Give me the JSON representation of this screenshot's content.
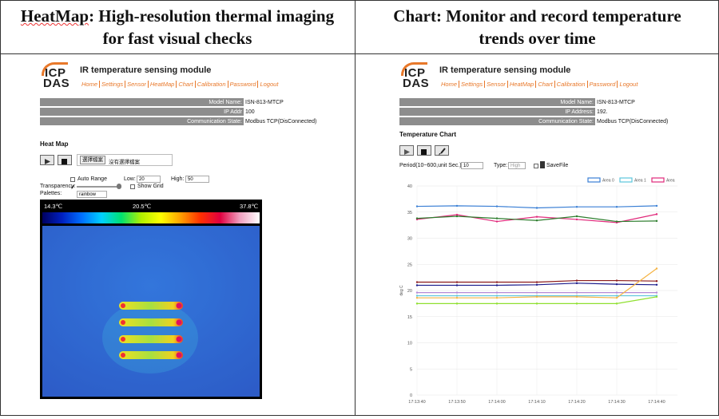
{
  "header": {
    "left_title_link": "HeatMap",
    "left_title": ": High-resolution thermal imaging for fast visual checks",
    "right_title": "Chart: Monitor and record temperature trends over time"
  },
  "left": {
    "logo_top": "ICP",
    "logo_bottom": "DAS",
    "module_title": "IR temperature sensing module",
    "nav": [
      "Home",
      "Settings",
      "Sensor",
      "HeatMap",
      "Chart",
      "Calibration",
      "Password",
      "Logout"
    ],
    "info": [
      [
        "Model Name:",
        "ISN-813-MTCP"
      ],
      [
        "IP Addr",
        "100"
      ],
      [
        "Communication State:",
        "Modbus TCP(DisConnected)"
      ]
    ],
    "section_title": "Heat Map",
    "file_button": "選擇檔案",
    "file_status": "沒有選擇檔案",
    "auto_range": "Auto Range",
    "low_label": "Low:",
    "low_value": "20",
    "high_label": "High:",
    "high_value": "50",
    "transparency_label": "Transparency:",
    "show_grid": "Show Grid",
    "palettes_label": "Palettes:",
    "palette": "rainbow",
    "scale_labels": [
      "14.3℃",
      "20.5℃",
      "37.8℃"
    ]
  },
  "right": {
    "logo_top": "ICP",
    "logo_bottom": "DAS",
    "module_title": "IR temperature sensing module",
    "nav": [
      "Home",
      "Settings",
      "Sensor",
      "HeatMap",
      "Chart",
      "Calibration",
      "Password",
      "Logout"
    ],
    "info": [
      [
        "Model Name:",
        "ISN-813-MTCP"
      ],
      [
        "IP Address:",
        "192."
      ],
      [
        "Communication State:",
        "Modbus TCP(DisConnected)"
      ]
    ],
    "section_title": "Temperature Chart",
    "period_label": "Period(10~600,unit Sec.):",
    "period_value": "10",
    "type_label": "Type:",
    "type_value": "High",
    "save_file": "SaveFile"
  },
  "chart_data": {
    "type": "line",
    "y_label": "deg C",
    "categories": [
      "17:13:40",
      "17:13:50",
      "17:14:00",
      "17:14:10",
      "17:14:20",
      "17:14:30",
      "17:14:40"
    ],
    "ylim": [
      0,
      40
    ],
    "yticks": [
      0,
      5,
      10,
      15,
      20,
      25,
      30,
      35,
      40
    ],
    "grid": true,
    "legend": "top-right",
    "series": [
      {
        "name": "Area 0",
        "color": "#3a7fd5",
        "values": [
          36.1,
          36.2,
          36.1,
          35.8,
          36.0,
          36.0,
          36.2
        ]
      },
      {
        "name": "Area 1",
        "color": "#5cc6dc",
        "values": [
          19.0,
          19.0,
          19.0,
          19.0,
          19.0,
          19.0,
          19.0
        ]
      },
      {
        "name": "Area",
        "color": "#e0287a",
        "values": [
          33.6,
          34.5,
          33.2,
          34.1,
          33.6,
          33.0,
          34.6
        ]
      },
      {
        "color": "#2e7d2e",
        "values": [
          33.8,
          34.2,
          33.8,
          33.4,
          34.2,
          33.2,
          33.3
        ]
      },
      {
        "color": "#8b1a1a",
        "values": [
          21.6,
          21.6,
          21.6,
          21.6,
          21.9,
          21.9,
          21.8
        ]
      },
      {
        "color": "#1a1a8b",
        "values": [
          21.0,
          21.0,
          21.0,
          21.1,
          21.4,
          21.2,
          21.1
        ]
      },
      {
        "color": "#b58ad6",
        "values": [
          19.6,
          19.6,
          19.6,
          19.6,
          19.6,
          19.6,
          19.6
        ]
      },
      {
        "color": "#f5b342",
        "values": [
          18.6,
          18.6,
          18.6,
          18.8,
          18.8,
          18.6,
          24.2
        ]
      },
      {
        "color": "#90e030",
        "values": [
          17.5,
          17.5,
          17.5,
          17.5,
          17.5,
          17.5,
          18.8
        ]
      }
    ]
  }
}
